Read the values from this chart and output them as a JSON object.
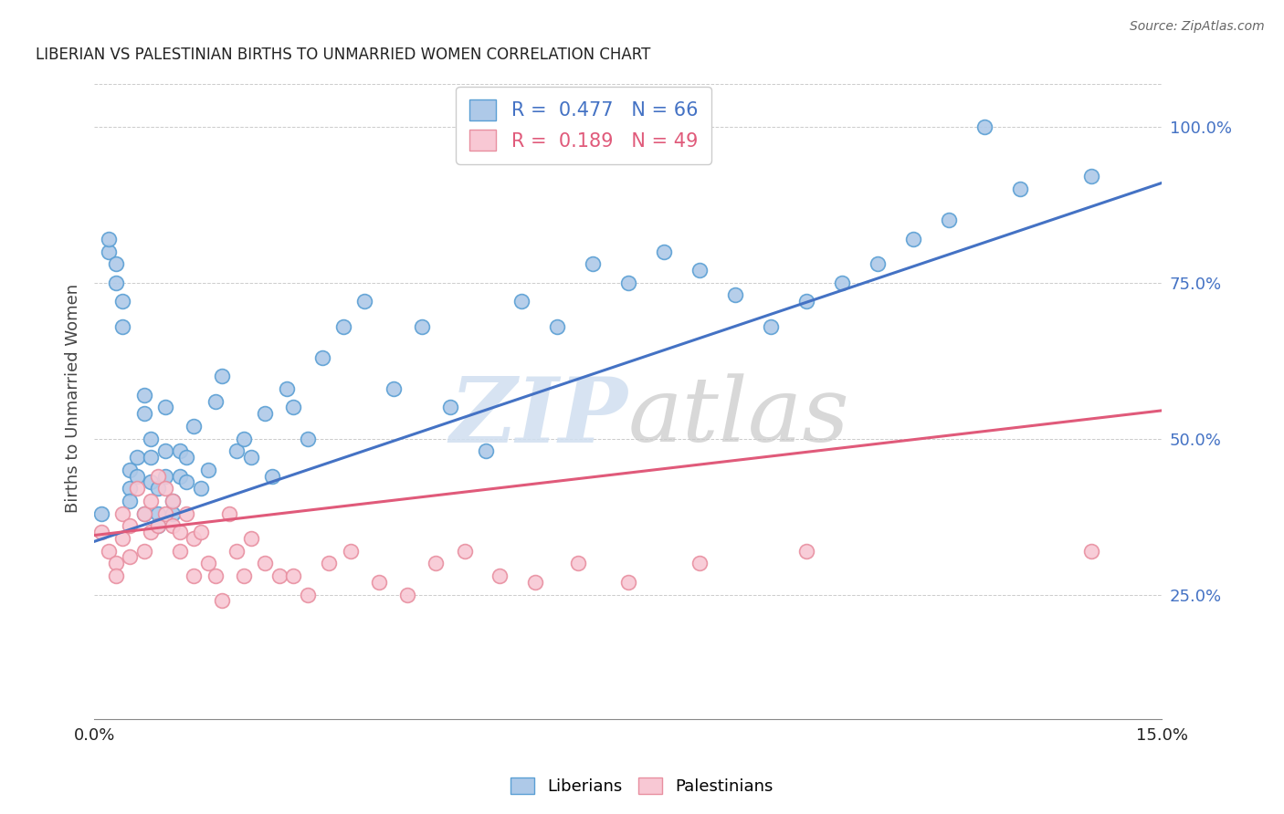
{
  "title": "LIBERIAN VS PALESTINIAN BIRTHS TO UNMARRIED WOMEN CORRELATION CHART",
  "source": "Source: ZipAtlas.com",
  "ylabel": "Births to Unmarried Women",
  "ytick_labels": [
    "25.0%",
    "50.0%",
    "75.0%",
    "100.0%"
  ],
  "ytick_positions": [
    0.25,
    0.5,
    0.75,
    1.0
  ],
  "xmin": 0.0,
  "xmax": 0.15,
  "ymin": 0.05,
  "ymax": 1.08,
  "liberian_R": 0.477,
  "liberian_N": 66,
  "palestinian_R": 0.189,
  "palestinian_N": 49,
  "liberian_color": "#aec9e8",
  "liberian_edge_color": "#5a9fd4",
  "liberian_line_color": "#4472c4",
  "palestinian_color": "#f8c8d4",
  "palestinian_edge_color": "#e88fa0",
  "palestinian_line_color": "#e05a7a",
  "background_color": "#ffffff",
  "grid_color": "#cccccc",
  "watermark_color": "#d0dff0",
  "title_color": "#222222",
  "axis_label_color": "#4472c4",
  "bottom_legend_label_color": "#000000",
  "liberian_x": [
    0.001,
    0.002,
    0.002,
    0.003,
    0.003,
    0.004,
    0.004,
    0.005,
    0.005,
    0.005,
    0.006,
    0.006,
    0.007,
    0.007,
    0.007,
    0.008,
    0.008,
    0.008,
    0.009,
    0.009,
    0.009,
    0.01,
    0.01,
    0.01,
    0.011,
    0.011,
    0.012,
    0.012,
    0.013,
    0.013,
    0.014,
    0.015,
    0.016,
    0.017,
    0.018,
    0.02,
    0.021,
    0.022,
    0.024,
    0.025,
    0.027,
    0.028,
    0.03,
    0.032,
    0.035,
    0.038,
    0.042,
    0.046,
    0.05,
    0.055,
    0.06,
    0.065,
    0.07,
    0.075,
    0.08,
    0.085,
    0.09,
    0.095,
    0.1,
    0.105,
    0.11,
    0.115,
    0.12,
    0.125,
    0.13,
    0.14
  ],
  "liberian_y": [
    0.38,
    0.8,
    0.82,
    0.75,
    0.78,
    0.72,
    0.68,
    0.42,
    0.45,
    0.4,
    0.44,
    0.47,
    0.54,
    0.57,
    0.38,
    0.5,
    0.47,
    0.43,
    0.38,
    0.42,
    0.36,
    0.55,
    0.48,
    0.44,
    0.4,
    0.38,
    0.48,
    0.44,
    0.47,
    0.43,
    0.52,
    0.42,
    0.45,
    0.56,
    0.6,
    0.48,
    0.5,
    0.47,
    0.54,
    0.44,
    0.58,
    0.55,
    0.5,
    0.63,
    0.68,
    0.72,
    0.58,
    0.68,
    0.55,
    0.48,
    0.72,
    0.68,
    0.78,
    0.75,
    0.8,
    0.77,
    0.73,
    0.68,
    0.72,
    0.75,
    0.78,
    0.82,
    0.85,
    1.0,
    0.9,
    0.92
  ],
  "palestinian_x": [
    0.001,
    0.002,
    0.003,
    0.003,
    0.004,
    0.004,
    0.005,
    0.005,
    0.006,
    0.007,
    0.007,
    0.008,
    0.008,
    0.009,
    0.009,
    0.01,
    0.01,
    0.011,
    0.011,
    0.012,
    0.012,
    0.013,
    0.014,
    0.014,
    0.015,
    0.016,
    0.017,
    0.018,
    0.019,
    0.02,
    0.021,
    0.022,
    0.024,
    0.026,
    0.028,
    0.03,
    0.033,
    0.036,
    0.04,
    0.044,
    0.048,
    0.052,
    0.057,
    0.062,
    0.068,
    0.075,
    0.085,
    0.1,
    0.14
  ],
  "palestinian_y": [
    0.35,
    0.32,
    0.3,
    0.28,
    0.38,
    0.34,
    0.36,
    0.31,
    0.42,
    0.38,
    0.32,
    0.4,
    0.35,
    0.44,
    0.36,
    0.38,
    0.42,
    0.36,
    0.4,
    0.35,
    0.32,
    0.38,
    0.34,
    0.28,
    0.35,
    0.3,
    0.28,
    0.24,
    0.38,
    0.32,
    0.28,
    0.34,
    0.3,
    0.28,
    0.28,
    0.25,
    0.3,
    0.32,
    0.27,
    0.25,
    0.3,
    0.32,
    0.28,
    0.27,
    0.3,
    0.27,
    0.3,
    0.32,
    0.32
  ],
  "lib_line_x0": 0.0,
  "lib_line_y0": 0.335,
  "lib_line_x1": 0.15,
  "lib_line_y1": 0.91,
  "pal_line_x0": 0.0,
  "pal_line_y0": 0.345,
  "pal_line_x1": 0.15,
  "pal_line_y1": 0.545
}
